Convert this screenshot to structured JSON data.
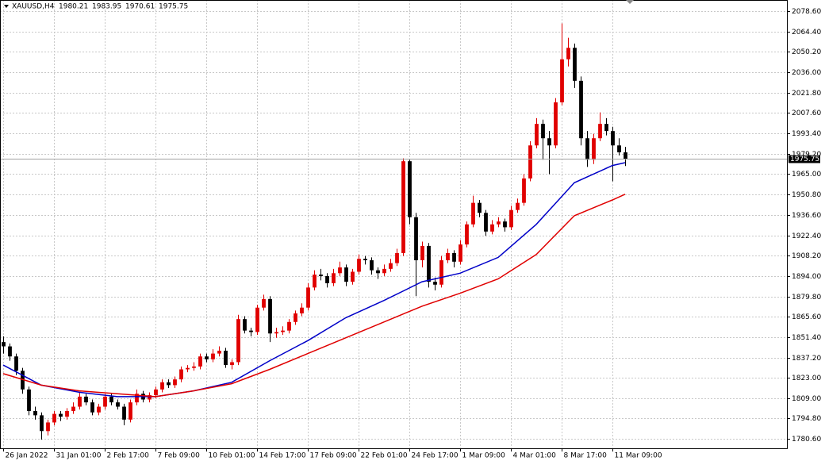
{
  "chart_data": {
    "type": "candlestick",
    "symbol": "XAUUSD,H4",
    "up_color": "#e00000",
    "down_color": "#000000",
    "grid": true,
    "candles": [
      [
        1848,
        1852,
        1840,
        1845
      ],
      [
        1845,
        1847,
        1835,
        1838
      ],
      [
        1838,
        1840,
        1825,
        1828
      ],
      [
        1828,
        1830,
        1812,
        1815
      ],
      [
        1815,
        1817,
        1797,
        1800
      ],
      [
        1800,
        1803,
        1794,
        1797
      ],
      [
        1797,
        1799,
        1780,
        1786
      ],
      [
        1786,
        1794,
        1783,
        1792
      ],
      [
        1792,
        1800,
        1790,
        1798
      ],
      [
        1798,
        1800,
        1793,
        1796
      ],
      [
        1796,
        1802,
        1794,
        1800
      ],
      [
        1800,
        1806,
        1798,
        1803
      ],
      [
        1803,
        1813,
        1801,
        1810
      ],
      [
        1810,
        1812,
        1804,
        1806
      ],
      [
        1806,
        1808,
        1797,
        1799
      ],
      [
        1799,
        1805,
        1797,
        1803
      ],
      [
        1803,
        1812,
        1801,
        1810
      ],
      [
        1810,
        1812,
        1804,
        1806
      ],
      [
        1806,
        1808,
        1801,
        1803
      ],
      [
        1803,
        1805,
        1790,
        1794
      ],
      [
        1794,
        1808,
        1792,
        1806
      ],
      [
        1806,
        1815,
        1804,
        1812
      ],
      [
        1812,
        1814,
        1806,
        1808
      ],
      [
        1808,
        1813,
        1806,
        1811
      ],
      [
        1811,
        1817,
        1809,
        1815
      ],
      [
        1815,
        1822,
        1813,
        1820
      ],
      [
        1820,
        1822,
        1816,
        1818
      ],
      [
        1818,
        1824,
        1816,
        1822
      ],
      [
        1822,
        1831,
        1820,
        1829
      ],
      [
        1829,
        1832,
        1827,
        1830
      ],
      [
        1830,
        1834,
        1828,
        1831
      ],
      [
        1831,
        1840,
        1829,
        1838
      ],
      [
        1838,
        1840,
        1834,
        1836
      ],
      [
        1836,
        1843,
        1834,
        1840
      ],
      [
        1840,
        1845,
        1838,
        1842
      ],
      [
        1842,
        1844,
        1830,
        1832
      ],
      [
        1832,
        1836,
        1829,
        1834
      ],
      [
        1834,
        1867,
        1832,
        1864
      ],
      [
        1864,
        1866,
        1854,
        1856
      ],
      [
        1856,
        1858,
        1852,
        1855
      ],
      [
        1855,
        1874,
        1853,
        1872
      ],
      [
        1872,
        1881,
        1870,
        1878
      ],
      [
        1878,
        1880,
        1848,
        1854
      ],
      [
        1854,
        1858,
        1851,
        1855
      ],
      [
        1855,
        1859,
        1853,
        1856
      ],
      [
        1856,
        1864,
        1854,
        1862
      ],
      [
        1862,
        1870,
        1860,
        1868
      ],
      [
        1868,
        1875,
        1866,
        1872
      ],
      [
        1872,
        1889,
        1870,
        1886
      ],
      [
        1886,
        1898,
        1884,
        1895
      ],
      [
        1895,
        1899,
        1891,
        1894
      ],
      [
        1894,
        1896,
        1886,
        1889
      ],
      [
        1889,
        1899,
        1887,
        1896
      ],
      [
        1896,
        1904,
        1894,
        1900
      ],
      [
        1900,
        1902,
        1887,
        1890
      ],
      [
        1890,
        1899,
        1888,
        1897
      ],
      [
        1897,
        1909,
        1895,
        1906
      ],
      [
        1906,
        1908,
        1902,
        1905
      ],
      [
        1905,
        1907,
        1895,
        1898
      ],
      [
        1898,
        1900,
        1892,
        1896
      ],
      [
        1896,
        1902,
        1894,
        1899
      ],
      [
        1899,
        1906,
        1897,
        1903
      ],
      [
        1903,
        1913,
        1901,
        1910
      ],
      [
        1910,
        1976,
        1908,
        1974
      ],
      [
        1974,
        1975,
        1930,
        1935
      ],
      [
        1935,
        1938,
        1880,
        1905
      ],
      [
        1905,
        1918,
        1900,
        1915
      ],
      [
        1915,
        1917,
        1886,
        1890
      ],
      [
        1890,
        1893,
        1884,
        1888
      ],
      [
        1888,
        1908,
        1886,
        1905
      ],
      [
        1905,
        1913,
        1903,
        1910
      ],
      [
        1910,
        1912,
        1900,
        1904
      ],
      [
        1904,
        1919,
        1902,
        1916
      ],
      [
        1916,
        1932,
        1914,
        1930
      ],
      [
        1930,
        1950,
        1928,
        1945
      ],
      [
        1945,
        1947,
        1935,
        1938
      ],
      [
        1938,
        1940,
        1922,
        1925
      ],
      [
        1925,
        1933,
        1923,
        1930
      ],
      [
        1930,
        1935,
        1928,
        1932
      ],
      [
        1932,
        1934,
        1925,
        1928
      ],
      [
        1928,
        1943,
        1926,
        1940
      ],
      [
        1940,
        1948,
        1938,
        1945
      ],
      [
        1945,
        1965,
        1943,
        1962
      ],
      [
        1962,
        1988,
        1960,
        1985
      ],
      [
        1985,
        2004,
        1983,
        2000
      ],
      [
        2000,
        2003,
        1975,
        1990
      ],
      [
        1990,
        1995,
        1965,
        1985
      ],
      [
        1985,
        2018,
        1983,
        2015
      ],
      [
        2015,
        2070,
        2013,
        2045
      ],
      [
        2045,
        2060,
        2040,
        2053
      ],
      [
        2053,
        2056,
        2025,
        2030
      ],
      [
        2030,
        2033,
        1985,
        1990
      ],
      [
        1990,
        1995,
        1970,
        1975
      ],
      [
        1975,
        1993,
        1972,
        1990
      ],
      [
        1990,
        2008,
        1988,
        2000
      ],
      [
        2000,
        2004,
        1992,
        1995
      ],
      [
        1995,
        1998,
        1960,
        1985
      ],
      [
        1985,
        1990,
        1978,
        1980.21
      ],
      [
        1980.21,
        1983.95,
        1970.61,
        1975.75
      ]
    ],
    "moving_averages": [
      {
        "color": "#0000c8",
        "x": [
          0,
          6,
          12,
          18,
          24,
          30,
          36,
          42,
          48,
          54,
          60,
          66,
          72,
          78,
          84,
          90,
          96,
          98
        ],
        "values": [
          1832,
          1818,
          1813,
          1810,
          1810,
          1814,
          1820,
          1835,
          1849,
          1865,
          1877,
          1890,
          1896,
          1907,
          1930,
          1959,
          1971,
          1973
        ]
      },
      {
        "color": "#e00000",
        "x": [
          0,
          6,
          12,
          18,
          24,
          30,
          36,
          42,
          48,
          54,
          60,
          66,
          72,
          78,
          84,
          90,
          96,
          98
        ],
        "values": [
          1826,
          1818,
          1814,
          1812,
          1810,
          1814,
          1819,
          1829,
          1840,
          1851,
          1862,
          1873,
          1882,
          1892,
          1909,
          1936,
          1947,
          1951
        ]
      }
    ],
    "xlim": [
      -0.5,
      123.5
    ],
    "xticks": [
      {
        "value": 0,
        "label": "26 Jan 2022"
      },
      {
        "value": 8,
        "label": "31 Jan 01:00"
      },
      {
        "value": 16,
        "label": "2 Feb 17:00"
      },
      {
        "value": 24,
        "label": "7 Feb 09:00"
      },
      {
        "value": 32,
        "label": "10 Feb 01:00"
      },
      {
        "value": 40,
        "label": "14 Feb 17:00"
      },
      {
        "value": 48,
        "label": "17 Feb 09:00"
      },
      {
        "value": 56,
        "label": "22 Feb 01:00"
      },
      {
        "value": 64,
        "label": "24 Feb 17:00"
      },
      {
        "value": 72,
        "label": "1 Mar 09:00"
      },
      {
        "value": 80,
        "label": "4 Mar 01:00"
      },
      {
        "value": 88,
        "label": "8 Mar 17:00"
      },
      {
        "value": 96,
        "label": "11 Mar 09:00"
      }
    ],
    "ylim": [
      1774.0,
      2086.3
    ],
    "yticks": [
      {
        "value": 2078.6,
        "label": "2078.60"
      },
      {
        "value": 2064.4,
        "label": "2064.40"
      },
      {
        "value": 2050.2,
        "label": "2050.20"
      },
      {
        "value": 2036,
        "label": "2036.00"
      },
      {
        "value": 2021.8,
        "label": "2021.80"
      },
      {
        "value": 2007.6,
        "label": "2007.60"
      },
      {
        "value": 1993.4,
        "label": "1993.40"
      },
      {
        "value": 1979.2,
        "label": "1979.20"
      },
      {
        "value": 1965,
        "label": "1965.00"
      },
      {
        "value": 1950.8,
        "label": "1950.80"
      },
      {
        "value": 1936.6,
        "label": "1936.60"
      },
      {
        "value": 1922.4,
        "label": "1922.40"
      },
      {
        "value": 1908.2,
        "label": "1908.20"
      },
      {
        "value": 1894,
        "label": "1894.00"
      },
      {
        "value": 1879.8,
        "label": "1879.80"
      },
      {
        "value": 1865.6,
        "label": "1865.60"
      },
      {
        "value": 1851.4,
        "label": "1851.40"
      },
      {
        "value": 1837.2,
        "label": "1837.20"
      },
      {
        "value": 1823,
        "label": "1823.00"
      },
      {
        "value": 1809,
        "label": "1809.00"
      },
      {
        "value": 1794.8,
        "label": "1794.80"
      },
      {
        "value": 1780.6,
        "label": "1780.60"
      }
    ]
  }
}
